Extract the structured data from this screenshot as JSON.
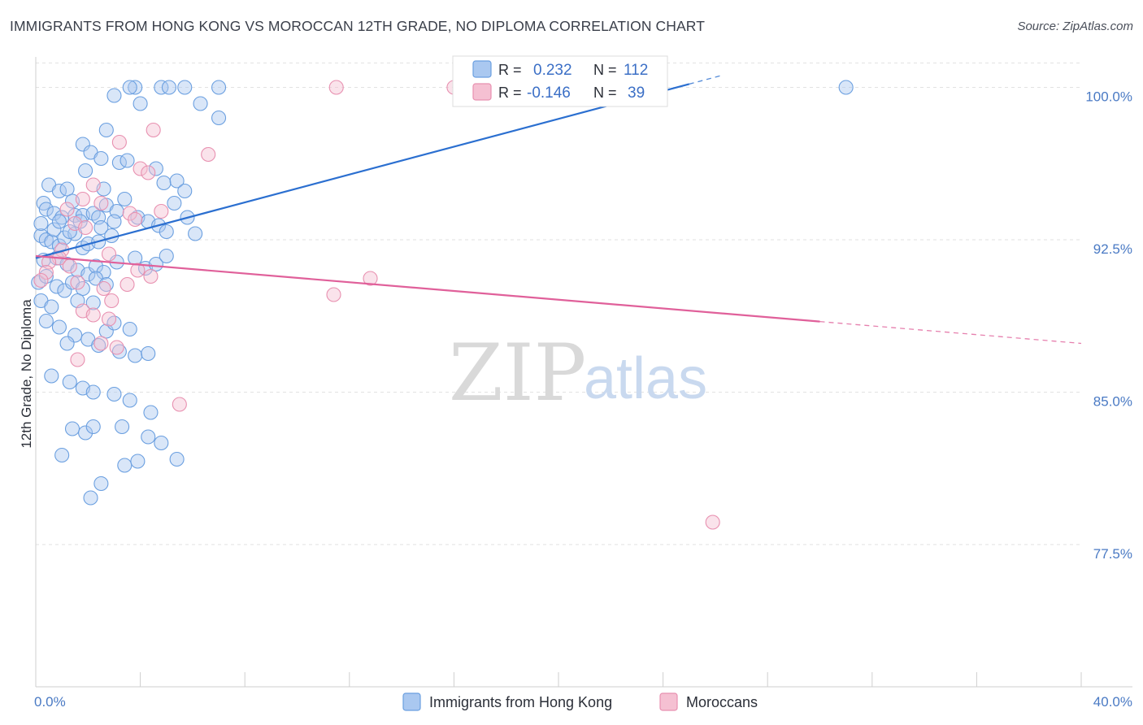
{
  "header": {
    "title": "IMMIGRANTS FROM HONG KONG VS MOROCCAN 12TH GRADE, NO DIPLOMA CORRELATION CHART",
    "source": "Source: ZipAtlas.com"
  },
  "watermark": {
    "zip": "ZIP",
    "atlas": "atlas"
  },
  "chart_data": {
    "type": "scatter",
    "title": "IMMIGRANTS FROM HONG KONG VS MOROCCAN 12TH GRADE, NO DIPLOMA CORRELATION CHART",
    "xlabel": "",
    "ylabel": "12th Grade, No Diploma",
    "xlim": [
      0,
      40
    ],
    "ylim": [
      70.5,
      101.5
    ],
    "x_tick_labels": {
      "left": "0.0%",
      "right": "40.0%"
    },
    "y_ticks": [
      {
        "value": 100.0,
        "label": "100.0%"
      },
      {
        "value": 92.5,
        "label": "92.5%"
      },
      {
        "value": 85.0,
        "label": "85.0%"
      },
      {
        "value": 77.5,
        "label": "77.5%"
      }
    ],
    "grid": true,
    "legend_position": "top-center",
    "stats": [
      {
        "r_label": "R =",
        "r_value": "0.232",
        "n_label": "N =",
        "n_value": "112"
      },
      {
        "r_label": "R =",
        "r_value": "-0.146",
        "n_label": "N =",
        "n_value": "39"
      }
    ],
    "series": [
      {
        "name": "Immigrants from Hong Kong",
        "color": "#6a9fe0",
        "fill": "#aac8f0",
        "line_color": "#2b6fd0",
        "trend": {
          "x0": 0.0,
          "y0": 91.6,
          "x1": 40.0,
          "y1": 105.3,
          "solid_until": 25.0
        },
        "points": [
          [
            3.0,
            99.6
          ],
          [
            3.8,
            100.0
          ],
          [
            4.0,
            99.2
          ],
          [
            3.6,
            100.0
          ],
          [
            4.8,
            100.0
          ],
          [
            5.1,
            100.0
          ],
          [
            5.7,
            100.0
          ],
          [
            6.3,
            99.2
          ],
          [
            7.0,
            100.0
          ],
          [
            7.0,
            98.5
          ],
          [
            31.0,
            100.0
          ],
          [
            2.7,
            97.9
          ],
          [
            1.8,
            97.2
          ],
          [
            2.1,
            96.8
          ],
          [
            2.5,
            96.5
          ],
          [
            3.2,
            96.3
          ],
          [
            1.9,
            95.9
          ],
          [
            3.5,
            96.4
          ],
          [
            4.6,
            96.0
          ],
          [
            4.9,
            95.3
          ],
          [
            5.4,
            95.4
          ],
          [
            5.7,
            94.9
          ],
          [
            2.6,
            95.0
          ],
          [
            0.5,
            95.2
          ],
          [
            0.9,
            94.9
          ],
          [
            1.2,
            95.0
          ],
          [
            1.4,
            94.4
          ],
          [
            0.3,
            94.3
          ],
          [
            0.4,
            94.0
          ],
          [
            0.7,
            93.8
          ],
          [
            1.0,
            93.6
          ],
          [
            1.5,
            93.7
          ],
          [
            1.8,
            93.7
          ],
          [
            2.2,
            93.8
          ],
          [
            2.4,
            93.6
          ],
          [
            2.7,
            94.2
          ],
          [
            3.1,
            93.9
          ],
          [
            3.4,
            94.5
          ],
          [
            3.0,
            93.4
          ],
          [
            2.5,
            93.1
          ],
          [
            3.9,
            93.6
          ],
          [
            4.3,
            93.4
          ],
          [
            4.7,
            93.2
          ],
          [
            5.3,
            94.3
          ],
          [
            5.0,
            92.9
          ],
          [
            5.8,
            93.6
          ],
          [
            6.1,
            92.8
          ],
          [
            0.2,
            92.7
          ],
          [
            0.4,
            92.5
          ],
          [
            0.6,
            92.4
          ],
          [
            0.9,
            92.2
          ],
          [
            1.1,
            92.6
          ],
          [
            1.5,
            92.8
          ],
          [
            1.8,
            92.1
          ],
          [
            2.0,
            92.3
          ],
          [
            2.4,
            92.4
          ],
          [
            0.2,
            93.3
          ],
          [
            0.7,
            93.0
          ],
          [
            1.3,
            92.9
          ],
          [
            0.3,
            91.5
          ],
          [
            0.8,
            91.6
          ],
          [
            1.2,
            91.3
          ],
          [
            1.6,
            91.0
          ],
          [
            2.0,
            90.8
          ],
          [
            2.3,
            91.2
          ],
          [
            2.6,
            90.9
          ],
          [
            3.1,
            91.4
          ],
          [
            3.8,
            91.6
          ],
          [
            4.2,
            91.1
          ],
          [
            4.6,
            91.3
          ],
          [
            5.0,
            91.7
          ],
          [
            0.1,
            90.4
          ],
          [
            0.4,
            90.7
          ],
          [
            0.8,
            90.2
          ],
          [
            1.1,
            90.0
          ],
          [
            1.4,
            90.4
          ],
          [
            1.8,
            90.1
          ],
          [
            2.3,
            90.6
          ],
          [
            2.7,
            90.3
          ],
          [
            0.2,
            89.5
          ],
          [
            0.6,
            89.2
          ],
          [
            1.6,
            89.5
          ],
          [
            2.2,
            89.4
          ],
          [
            0.4,
            88.5
          ],
          [
            0.9,
            88.2
          ],
          [
            1.5,
            87.8
          ],
          [
            2.0,
            87.6
          ],
          [
            2.7,
            88.0
          ],
          [
            3.0,
            88.4
          ],
          [
            3.6,
            88.1
          ],
          [
            1.2,
            87.4
          ],
          [
            2.4,
            87.3
          ],
          [
            3.2,
            87.0
          ],
          [
            3.8,
            86.8
          ],
          [
            4.3,
            86.9
          ],
          [
            0.6,
            85.8
          ],
          [
            1.3,
            85.5
          ],
          [
            1.8,
            85.2
          ],
          [
            2.2,
            85.0
          ],
          [
            3.0,
            84.9
          ],
          [
            3.6,
            84.6
          ],
          [
            4.4,
            84.0
          ],
          [
            1.4,
            83.2
          ],
          [
            1.9,
            83.0
          ],
          [
            2.2,
            83.3
          ],
          [
            3.3,
            83.3
          ],
          [
            4.3,
            82.8
          ],
          [
            1.0,
            81.9
          ],
          [
            3.4,
            81.4
          ],
          [
            3.9,
            81.6
          ],
          [
            2.5,
            80.5
          ],
          [
            2.1,
            79.8
          ],
          [
            5.4,
            81.7
          ],
          [
            4.8,
            82.5
          ],
          [
            0.9,
            93.4
          ],
          [
            1.7,
            93.4
          ],
          [
            2.9,
            92.7
          ]
        ]
      },
      {
        "name": "Moroccans",
        "color": "#e890b0",
        "fill": "#f5c0d2",
        "line_color": "#e0609a",
        "trend": {
          "x0": 0.0,
          "y0": 91.7,
          "x1": 40.0,
          "y1": 87.4,
          "solid_until": 30.0
        },
        "points": [
          [
            11.5,
            100.0
          ],
          [
            16.0,
            100.0
          ],
          [
            4.5,
            97.9
          ],
          [
            3.2,
            97.3
          ],
          [
            6.6,
            96.7
          ],
          [
            4.0,
            96.0
          ],
          [
            4.3,
            95.8
          ],
          [
            2.2,
            95.2
          ],
          [
            1.8,
            94.5
          ],
          [
            2.5,
            94.3
          ],
          [
            1.2,
            94.0
          ],
          [
            4.8,
            93.9
          ],
          [
            3.6,
            93.8
          ],
          [
            3.8,
            93.5
          ],
          [
            1.5,
            93.3
          ],
          [
            1.9,
            93.1
          ],
          [
            1.0,
            92.0
          ],
          [
            2.8,
            91.8
          ],
          [
            0.9,
            91.6
          ],
          [
            0.5,
            91.4
          ],
          [
            1.3,
            91.2
          ],
          [
            0.4,
            90.9
          ],
          [
            3.9,
            91.0
          ],
          [
            4.4,
            90.7
          ],
          [
            0.2,
            90.5
          ],
          [
            1.6,
            90.4
          ],
          [
            3.5,
            90.3
          ],
          [
            2.6,
            90.1
          ],
          [
            11.4,
            89.8
          ],
          [
            12.8,
            90.6
          ],
          [
            2.9,
            89.5
          ],
          [
            1.8,
            89.0
          ],
          [
            2.2,
            88.8
          ],
          [
            2.8,
            88.6
          ],
          [
            2.5,
            87.4
          ],
          [
            3.1,
            87.2
          ],
          [
            1.6,
            86.6
          ],
          [
            5.5,
            84.4
          ],
          [
            25.9,
            78.6
          ]
        ]
      }
    ]
  },
  "legend": {
    "series_a": "Immigrants from Hong Kong",
    "series_b": "Moroccans"
  }
}
